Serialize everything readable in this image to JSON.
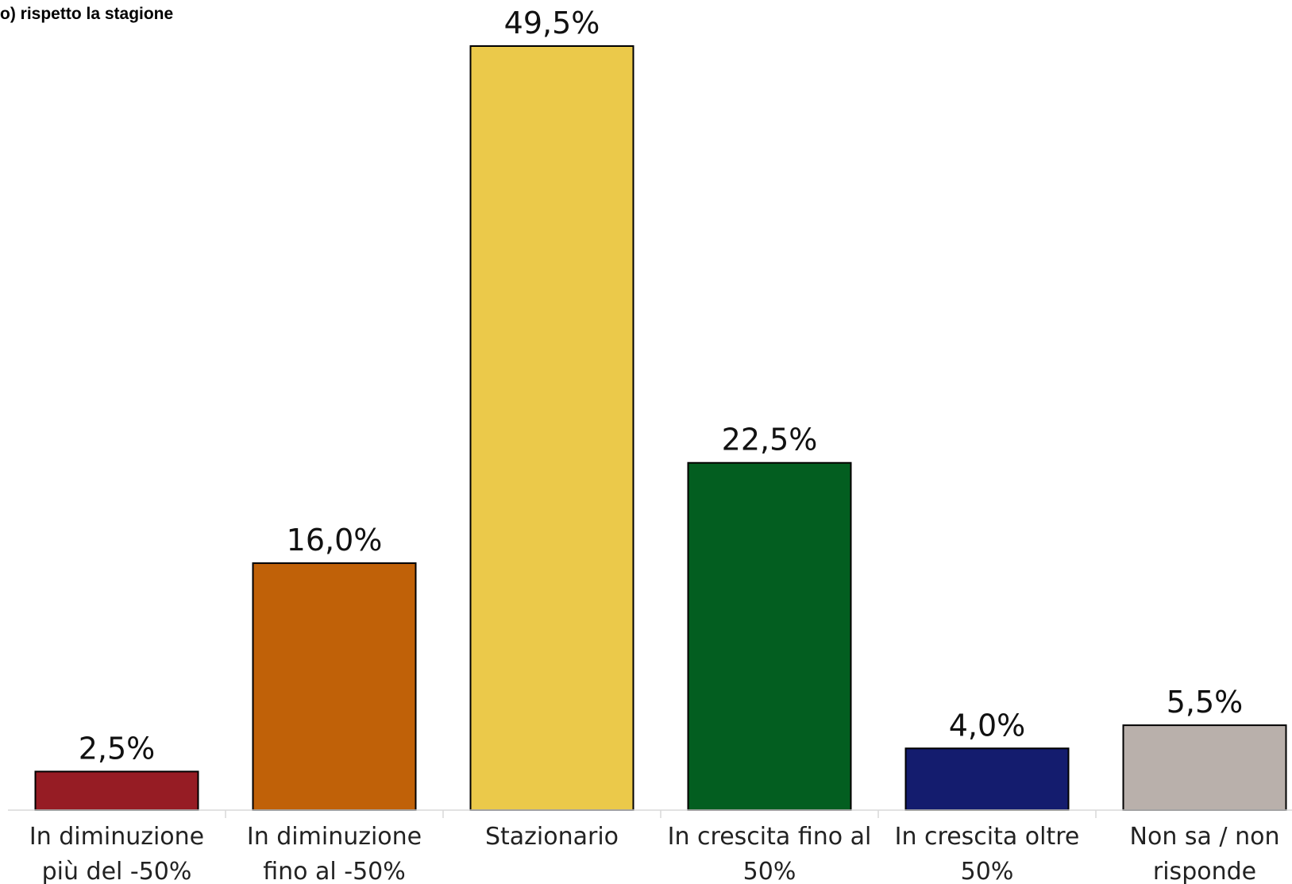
{
  "chart_data": {
    "type": "bar",
    "title": "o) rispetto la stagione",
    "xlabel": "",
    "ylabel": "",
    "ylim": [
      0,
      49.5
    ],
    "grid": false,
    "legend": "none",
    "categories": [
      [
        "In diminuzione",
        "più del -50%"
      ],
      [
        "In diminuzione",
        "fino al -50%"
      ],
      [
        "Stazionario"
      ],
      [
        "In crescita fino al",
        "50%"
      ],
      [
        "In crescita oltre",
        "50%"
      ],
      [
        "Non sa / non",
        "risponde"
      ]
    ],
    "values": [
      2.5,
      16.0,
      49.5,
      22.5,
      4.0,
      5.5
    ],
    "value_labels": [
      "2,5%",
      "16,0%",
      "49,5%",
      "22,5%",
      "4,0%",
      "5,5%"
    ],
    "colors": [
      "#961C24",
      "#C06108",
      "#EBC94A",
      "#035E20",
      "#141C6E",
      "#B9B0AB"
    ]
  }
}
